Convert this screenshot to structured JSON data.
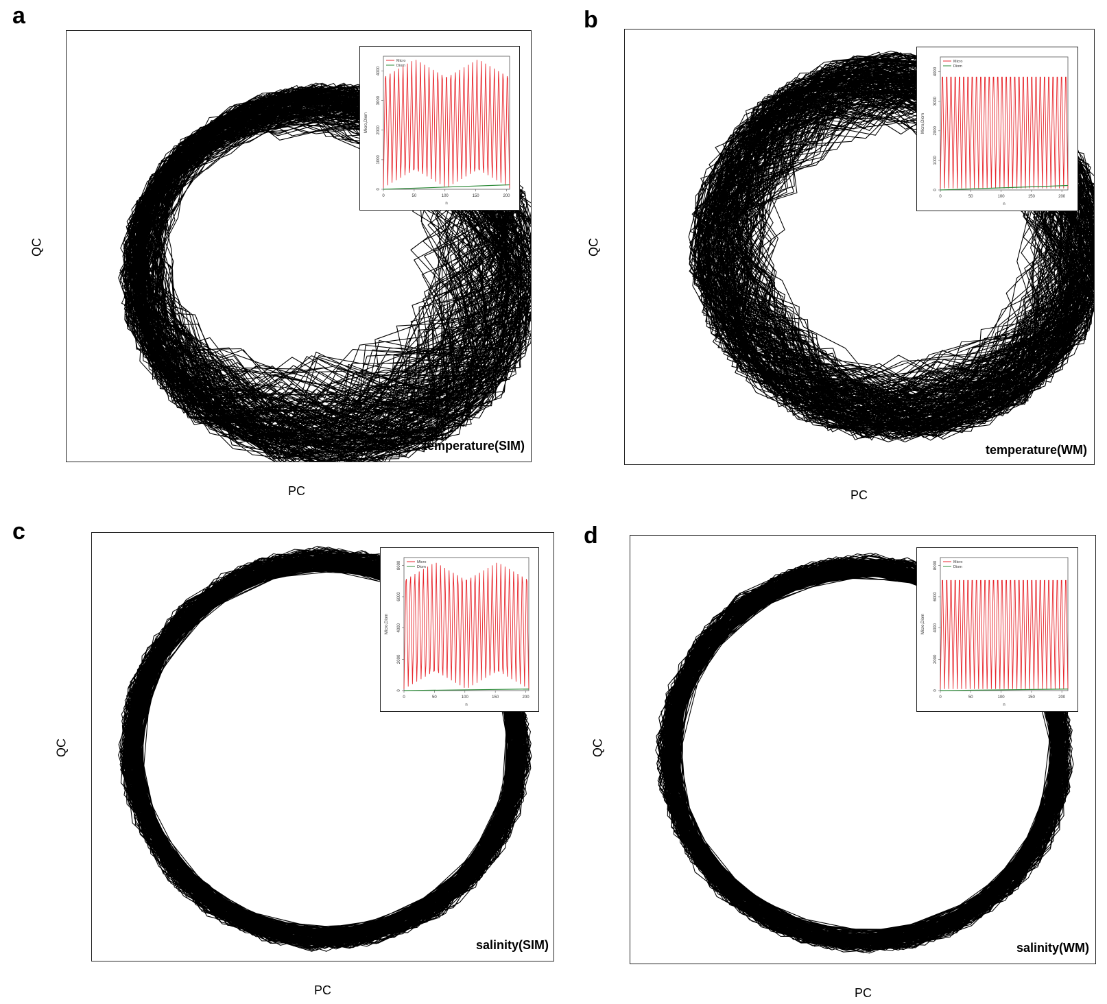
{
  "panels": [
    {
      "letter": "a",
      "title": "temperature(SIM)",
      "xlabel": "PC",
      "ylabel": "QC",
      "inset": {
        "series": [
          {
            "name": "Micro",
            "color": "#e8262c"
          },
          {
            "name": "Diom",
            "color": "#2e8b3a"
          }
        ],
        "xlabel": "n",
        "ylabel": "Micro,Diom",
        "xticks": [
          0,
          50,
          100,
          150,
          200
        ],
        "yticks": [
          0,
          1000,
          2000,
          3000,
          4000
        ]
      }
    },
    {
      "letter": "b",
      "title": "temperature(WM)",
      "xlabel": "PC",
      "ylabel": "QC",
      "inset": {
        "series": [
          {
            "name": "Micro",
            "color": "#e8262c"
          },
          {
            "name": "Diom",
            "color": "#2e8b3a"
          }
        ],
        "xlabel": "n",
        "ylabel": "Micro,Diom",
        "xticks": [
          0,
          50,
          100,
          150,
          200
        ],
        "yticks": [
          0,
          1000,
          2000,
          3000,
          4000
        ]
      }
    },
    {
      "letter": "c",
      "title": "salinity(SIM)",
      "xlabel": "PC",
      "ylabel": "QC",
      "inset": {
        "series": [
          {
            "name": "Micro",
            "color": "#e8262c"
          },
          {
            "name": "Diom",
            "color": "#2e8b3a"
          }
        ],
        "xlabel": "n",
        "ylabel": "Micro,Diom",
        "xticks": [
          0,
          50,
          100,
          150,
          200
        ],
        "yticks": [
          0,
          2000,
          4000,
          6000,
          8000
        ]
      }
    },
    {
      "letter": "d",
      "title": "salinity(WM)",
      "xlabel": "PC",
      "ylabel": "QC",
      "inset": {
        "series": [
          {
            "name": "Micro",
            "color": "#e8262c"
          },
          {
            "name": "Diom",
            "color": "#2e8b3a"
          }
        ],
        "xlabel": "n",
        "ylabel": "Micro,Diom",
        "xticks": [
          0,
          50,
          100,
          150,
          200
        ],
        "yticks": [
          0,
          2000,
          4000,
          6000,
          8000
        ]
      }
    }
  ],
  "chart_data": [
    {
      "type": "line",
      "panel": "a",
      "title": "temperature(SIM)",
      "xlabel": "PC",
      "ylabel": "QC",
      "description_shape": "dense phase-space trajectory, spiral toward center (open inner area)",
      "inset": {
        "type": "line",
        "xlabel": "n",
        "ylabel": "Micro,Diom",
        "xlim": [
          0,
          205
        ],
        "ylim": [
          0,
          4500
        ],
        "series": [
          {
            "name": "Micro",
            "oscillation_min": 50,
            "oscillation_max": 4400,
            "cycles": 29
          },
          {
            "name": "Diom",
            "start": 0,
            "end": 150
          }
        ]
      }
    },
    {
      "type": "line",
      "panel": "b",
      "title": "temperature(WM)",
      "xlabel": "PC",
      "ylabel": "QC",
      "inset": {
        "type": "line",
        "xlabel": "n",
        "ylabel": "Micro,Diom",
        "xlim": [
          0,
          210
        ],
        "ylim": [
          0,
          4500
        ],
        "series": [
          {
            "name": "Micro",
            "oscillation_min": 50,
            "oscillation_max": 4450,
            "cycles": 30
          },
          {
            "name": "Diom",
            "start": 0,
            "end": 150
          }
        ]
      }
    },
    {
      "type": "line",
      "panel": "c",
      "title": "salinity(SIM)",
      "xlabel": "PC",
      "ylabel": "QC",
      "inset": {
        "type": "line",
        "xlabel": "n",
        "ylabel": "Micro,Diom",
        "xlim": [
          0,
          205
        ],
        "ylim": [
          0,
          8500
        ],
        "series": [
          {
            "name": "Micro",
            "oscillation_min": 100,
            "oscillation_max": 8200,
            "cycles": 29
          },
          {
            "name": "Diom",
            "start": 0,
            "end": 100
          }
        ]
      }
    },
    {
      "type": "line",
      "panel": "d",
      "title": "salinity(WM)",
      "xlabel": "PC",
      "ylabel": "QC",
      "inset": {
        "type": "line",
        "xlabel": "n",
        "ylabel": "Micro,Diom",
        "xlim": [
          0,
          210
        ],
        "ylim": [
          0,
          8500
        ],
        "series": [
          {
            "name": "Micro",
            "oscillation_min": 100,
            "oscillation_max": 8200,
            "cycles": 30
          },
          {
            "name": "Diom",
            "start": 0,
            "end": 100
          }
        ]
      }
    }
  ]
}
